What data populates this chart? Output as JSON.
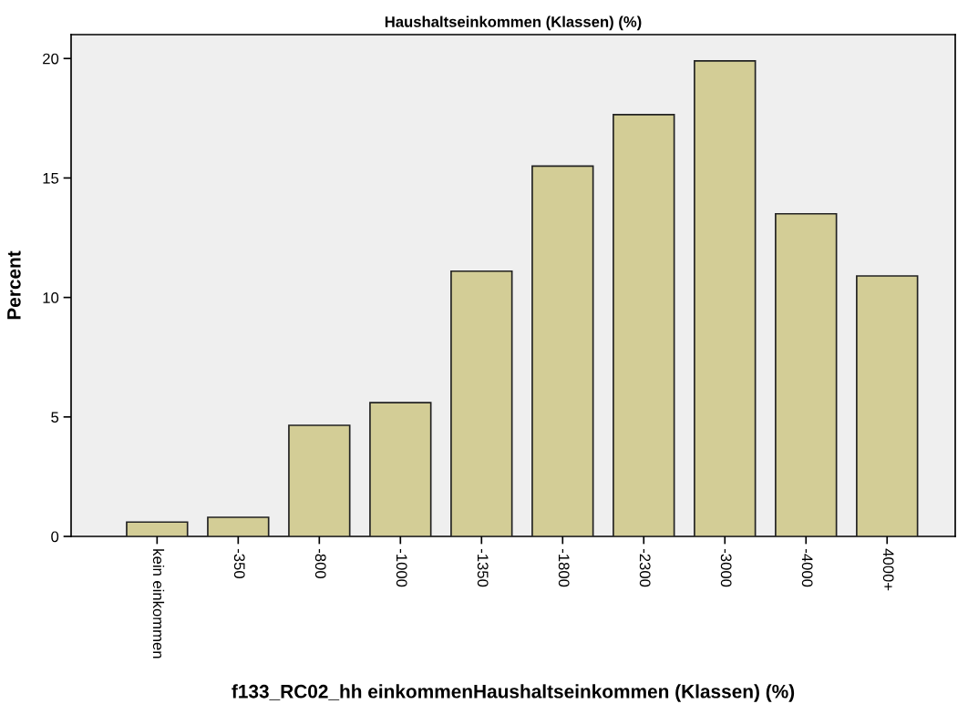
{
  "chart_data": {
    "type": "bar",
    "title": "Haushaltseinkommen (Klassen) (%)",
    "xlabel": "f133_RC02_hh einkommenHaushaltseinkommen (Klassen) (%)",
    "ylabel": "Percent",
    "categories": [
      "kein einkommen",
      "-350",
      "-800",
      "-1000",
      "-1350",
      "-1800",
      "-2300",
      "-3000",
      "-4000",
      "4000+"
    ],
    "values": [
      0.6,
      0.8,
      4.65,
      5.6,
      11.1,
      15.5,
      17.65,
      19.9,
      13.5,
      10.9
    ],
    "color": "#d3cd96",
    "ylim": [
      0,
      21
    ],
    "yticks": [
      0,
      5,
      10,
      15,
      20
    ],
    "grid": false
  }
}
